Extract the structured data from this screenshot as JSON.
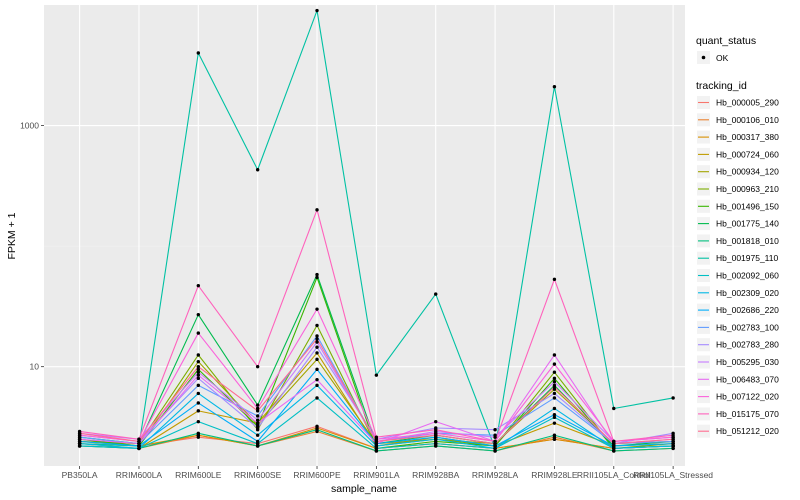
{
  "chart_data": {
    "type": "line",
    "xlabel": "sample_name",
    "ylabel": "FPKM + 1",
    "y_scale": "log10",
    "ylim": [
      1.5,
      10000
    ],
    "y_ticks": [
      {
        "value": 10,
        "label": "10"
      },
      {
        "value": 1000,
        "label": "1000"
      }
    ],
    "categories": [
      "PB350LA",
      "RRIM600LA",
      "RRIM600LE",
      "RRIM600SE",
      "RRIM600PE",
      "RRIM901LA",
      "RRIM928BA",
      "RRIM928LA",
      "RRIM928LE",
      "RRII105LA_Control",
      "RRII105LA_Stressed"
    ],
    "grid": true,
    "legend_position": "right",
    "point_legend": {
      "title": "quant_status",
      "label": "OK"
    },
    "series_legend_title": "tracking_id",
    "series": [
      {
        "name": "Hb_000005_290",
        "color": "#F8766D",
        "values": [
          2.5,
          2.2,
          2.6,
          2.3,
          3.2,
          2.1,
          2.3,
          2.1,
          2.5,
          2.1,
          2.2
        ]
      },
      {
        "name": "Hb_000106_010",
        "color": "#EA8331",
        "values": [
          2.2,
          2.1,
          2.7,
          2.2,
          2.9,
          2.0,
          2.2,
          2.0,
          2.6,
          2.0,
          2.1
        ]
      },
      {
        "name": "Hb_000317_380",
        "color": "#D89000",
        "values": [
          2.4,
          2.2,
          2.7,
          2.2,
          3.1,
          2.1,
          2.3,
          2.1,
          2.5,
          2.1,
          2.2
        ]
      },
      {
        "name": "Hb_000724_060",
        "color": "#C09B00",
        "values": [
          2.3,
          2.1,
          4.3,
          3.4,
          13.0,
          2.2,
          2.6,
          2.2,
          3.4,
          2.2,
          2.3
        ]
      },
      {
        "name": "Hb_000934_120",
        "color": "#A3A500",
        "values": [
          2.3,
          2.2,
          11.0,
          3.3,
          11.5,
          2.3,
          2.5,
          2.3,
          6.5,
          2.3,
          2.4
        ]
      },
      {
        "name": "Hb_000963_210",
        "color": "#7CAE00",
        "values": [
          2.4,
          2.3,
          12.5,
          3.0,
          22.0,
          2.2,
          2.5,
          2.2,
          9.0,
          2.1,
          2.3
        ]
      },
      {
        "name": "Hb_001496_150",
        "color": "#39B600",
        "values": [
          2.5,
          2.2,
          9.5,
          3.2,
          55.0,
          2.1,
          2.4,
          2.2,
          8.0,
          2.1,
          2.2
        ]
      },
      {
        "name": "Hb_001775_140",
        "color": "#00BB4E",
        "values": [
          2.6,
          2.3,
          27.0,
          4.8,
          58.0,
          2.3,
          2.7,
          2.3,
          7.0,
          2.2,
          2.4
        ]
      },
      {
        "name": "Hb_001818_010",
        "color": "#00BF7D",
        "values": [
          2.2,
          2.1,
          2.8,
          2.2,
          3.0,
          2.0,
          2.2,
          2.0,
          2.7,
          2.0,
          2.1
        ]
      },
      {
        "name": "Hb_001975_110",
        "color": "#00C1A3",
        "values": [
          2.3,
          2.2,
          4000.0,
          430.0,
          9000.0,
          8.5,
          40.0,
          2.1,
          2100.0,
          4.5,
          5.5
        ]
      },
      {
        "name": "Hb_002092_060",
        "color": "#00BFC4",
        "values": [
          2.2,
          2.1,
          3.5,
          2.3,
          5.5,
          2.1,
          2.3,
          2.1,
          3.8,
          2.1,
          2.2
        ]
      },
      {
        "name": "Hb_002309_020",
        "color": "#00B8E5",
        "values": [
          2.3,
          2.1,
          6.0,
          2.7,
          7.0,
          2.2,
          2.5,
          2.1,
          4.5,
          2.1,
          2.2
        ]
      },
      {
        "name": "Hb_002686_220",
        "color": "#00ADFA",
        "values": [
          2.4,
          2.2,
          5.0,
          2.4,
          9.5,
          2.3,
          2.6,
          2.2,
          4.0,
          2.2,
          2.3
        ]
      },
      {
        "name": "Hb_002783_100",
        "color": "#619CFF",
        "values": [
          2.6,
          2.3,
          7.0,
          3.9,
          18.0,
          2.4,
          2.8,
          2.7,
          5.5,
          2.3,
          2.4
        ]
      },
      {
        "name": "Hb_002783_280",
        "color": "#A58AFF",
        "values": [
          2.7,
          2.4,
          8.0,
          3.1,
          14.5,
          2.5,
          3.1,
          3.0,
          6.0,
          2.3,
          2.8
        ]
      },
      {
        "name": "Hb_005295_030",
        "color": "#C77CFF",
        "values": [
          2.8,
          2.5,
          9.0,
          3.6,
          16.0,
          2.4,
          2.9,
          2.6,
          7.5,
          2.4,
          2.6
        ]
      },
      {
        "name": "Hb_006483_070",
        "color": "#E76BF3",
        "values": [
          2.5,
          2.3,
          8.5,
          3.4,
          7.8,
          2.3,
          3.5,
          2.4,
          12.5,
          2.3,
          2.5
        ]
      },
      {
        "name": "Hb_007122_020",
        "color": "#FA62DB",
        "values": [
          2.7,
          2.4,
          19.0,
          4.5,
          30.0,
          2.5,
          2.8,
          2.4,
          10.5,
          2.4,
          2.6
        ]
      },
      {
        "name": "Hb_015175_070",
        "color": "#FF62BC",
        "values": [
          2.9,
          2.5,
          47.0,
          10.0,
          200.0,
          2.6,
          3.0,
          2.4,
          53.0,
          2.4,
          2.7
        ]
      },
      {
        "name": "Hb_051212_020",
        "color": "#FF6C91",
        "values": [
          2.8,
          2.4,
          10.0,
          4.3,
          17.0,
          2.4,
          2.7,
          2.3,
          6.8,
          2.3,
          2.5
        ]
      }
    ]
  }
}
